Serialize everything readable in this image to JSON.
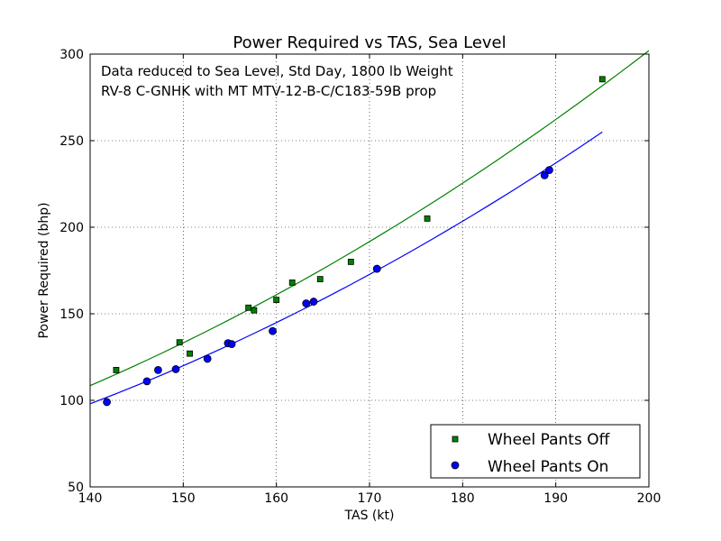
{
  "chart_data": {
    "type": "scatter",
    "title": "Power Required vs TAS, Sea Level",
    "xlabel": "TAS (kt)",
    "ylabel": "Power Required (bhp)",
    "xlim": [
      140,
      200
    ],
    "ylim": [
      50,
      300
    ],
    "xticks": [
      140,
      150,
      160,
      170,
      180,
      190,
      200
    ],
    "yticks": [
      50,
      100,
      150,
      200,
      250,
      300
    ],
    "xtick_labels": [
      "140",
      "150",
      "160",
      "170",
      "180",
      "190",
      "200"
    ],
    "ytick_labels": [
      "50",
      "100",
      "150",
      "200",
      "250",
      "300"
    ],
    "grid": true,
    "legend_position": "lower-right",
    "annotations": [
      "Data reduced to Sea Level, Std Day, 1800 lb Weight",
      "RV-8 C-GNHK with MT MTV-12-B-C/C183-59B prop"
    ],
    "series": [
      {
        "name": "Wheel Pants Off",
        "marker": "square",
        "color": "#008000",
        "points": [
          [
            142.8,
            117.5
          ],
          [
            149.6,
            133.5
          ],
          [
            150.7,
            127
          ],
          [
            157.0,
            153.5
          ],
          [
            157.6,
            152
          ],
          [
            160.0,
            158
          ],
          [
            161.7,
            168
          ],
          [
            164.7,
            170
          ],
          [
            168.0,
            180
          ],
          [
            176.2,
            205
          ],
          [
            195.0,
            285.5
          ]
        ],
        "fit": {
          "x_start": 140,
          "x_end": 200,
          "y_start": 108.5,
          "y_end": 302
        }
      },
      {
        "name": "Wheel Pants On",
        "marker": "circle",
        "color": "#0000ff",
        "points": [
          [
            141.8,
            99
          ],
          [
            146.1,
            111
          ],
          [
            147.3,
            117.5
          ],
          [
            149.2,
            118
          ],
          [
            152.6,
            124
          ],
          [
            154.8,
            133
          ],
          [
            155.2,
            132.5
          ],
          [
            159.6,
            140
          ],
          [
            163.2,
            156
          ],
          [
            164.0,
            157
          ],
          [
            170.8,
            176
          ],
          [
            188.8,
            230
          ],
          [
            189.3,
            233
          ]
        ],
        "fit": {
          "x_start": 140,
          "x_end": 195,
          "y_start": 98,
          "y_end": 255
        }
      }
    ]
  }
}
